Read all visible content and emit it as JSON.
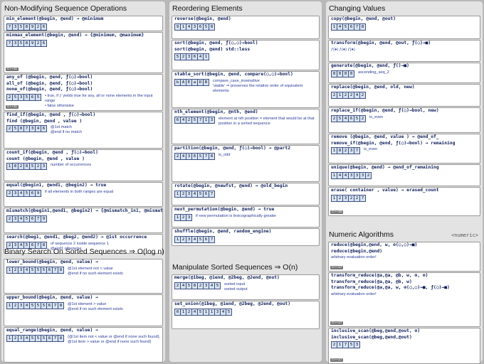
{
  "columns": [
    {
      "sections": [
        {
          "title": "Non-Modifying Sequence Operations",
          "cards": [
            {
              "lines": [
                "min_element(@begin, @end) → @minimum"
              ],
              "cells": [
                "7",
                "3",
                "5",
                "8",
                "9",
                "2",
                "6"
              ]
            },
            {
              "lines": [
                "minmax_element(@begin, @end) → {@minimum, @maximum}"
              ],
              "cells": [
                "7",
                "3",
                "5",
                "8",
                "9",
                "2",
                "6"
              ],
              "tag": "C++11"
            },
            {
              "lines": [
                "any_of (@begin, @end, ƒ(○)→bool)",
                "all_of (@begin, @end, ƒ(○)→bool)",
                "none_of(@begin, @end, ƒ(○)→bool)"
              ],
              "notes": [
                "• true, if ƒ yields true for any, all or none elements in the input range",
                "• false otherwise"
              ],
              "cells": [
                "2",
                "5",
                "3",
                "5",
                "6",
                "5"
              ],
              "tag": "C++11"
            },
            {
              "lines": [
                "find_if(@begin, @end , ƒ(○)→bool)",
                "find   (@begin, @end , value )"
              ],
              "notes": [
                "@1st match",
                "@end if no match"
              ],
              "cells": [
                "2",
                "5",
                "8",
                "7",
                "3",
                "4",
                "6"
              ]
            },
            {
              "lines": [
                "count_if(@begin, @end , ƒ(○)→bool)",
                "count   (@begin, @end , value )"
              ],
              "notes": [
                "number of occurrences"
              ],
              "cells": [
                "1",
                "8",
                "2",
                "8",
                "5",
                "2",
                "3"
              ]
            },
            {
              "lines": [
                "equal(@begin1, @end1, @begin2) → true"
              ],
              "notes": [
                "if all elements in both ranges are equal"
              ],
              "cells": [
                "2",
                "3",
                "4",
                "5",
                "6",
                "9"
              ]
            },
            {
              "lines": [
                "mismatch(@begin1,@end1, @begin2) → {@mismatch_in1, @mismatch_in2}"
              ],
              "cells": [
                "2",
                "3",
                "4",
                "5",
                "6",
                "7",
                "9"
              ]
            },
            {
              "lines": [
                "search(@beg1, @end1, @beg2, @end2) → @1st occurrence"
              ],
              "notes": [
                "of sequence 2 inside sequence 1",
                "@end1 otherwise"
              ],
              "cells": [
                "2",
                "3",
                "4",
                "5",
                "6",
                "7",
                "8"
              ]
            }
          ]
        },
        {
          "title": "Binary Search On Sorted Sequences ⇒ O(log n)",
          "cards": [
            {
              "lines": [
                "lower_bound(@begin, @end, value) →"
              ],
              "notes": [
                "@1st element not < value",
                "@end if no such element exists"
              ],
              "cells": [
                "1",
                "2",
                "3",
                "4",
                "5",
                "5",
                "5",
                "6",
                "7",
                "8"
              ]
            },
            {
              "lines": [
                "upper_bound(@begin, @end, value) →"
              ],
              "notes": [
                "@1st element > value",
                "@end if no such element exists"
              ],
              "cells": [
                "1",
                "2",
                "3",
                "4",
                "5",
                "5",
                "5",
                "6",
                "7",
                "8"
              ]
            },
            {
              "lines": [
                "equal_range(@begin, @end, value) →"
              ],
              "notes": [
                "{@1st item not < value or @end if none such found},",
                "@1st item > value or @end if none such found}"
              ],
              "cells": [
                "1",
                "2",
                "3",
                "4",
                "5",
                "5",
                "5",
                "6",
                "7",
                "8"
              ]
            }
          ]
        }
      ]
    },
    {
      "sections": [
        {
          "title": "Reordering Elements",
          "cards": [
            {
              "lines": [
                "reverse(@begin, @end)"
              ],
              "cells": [
                "9",
                "1",
                "4",
                "3",
                "6",
                "5",
                "8"
              ]
            },
            {
              "lines": [
                "sort(@begin, @end, ƒ(○,○)→bool)",
                "sort(@begin, @end)   std::less"
              ],
              "cells": [
                "5",
                "2",
                "3",
                "6",
                "4",
                "1"
              ]
            },
            {
              "lines": [
                "stable_sort(@begin, @end, compare(○,○)→bool)"
              ],
              "notes": [
                "compare_case_insensitive",
                "'stable' ⇒ preserves the relative order of equivalent elements"
              ],
              "cells": [
                "b",
                "A",
                "E",
                "a",
                "D",
                "B"
              ]
            },
            {
              "lines": [
                "nth_element(@begin, @nth, @end)"
              ],
              "notes": [
                "element at nth position = element that would be at that position in a sorted sequence"
              ],
              "cells": [
                "6",
                "4",
                "2",
                "5",
                "7",
                "1",
                "3"
              ]
            },
            {
              "lines": [
                "partition(@begin, @end, ƒ(○)→bool) → @part2"
              ],
              "notes": [
                "is_odd"
              ],
              "cells": [
                "2",
                "4",
                "3",
                "6",
                "5",
                "7",
                "8"
              ]
            },
            {
              "lines": [
                "rotate(@begin, @newfst, @end) → @old_begin"
              ],
              "cells": [
                "1",
                "2",
                "3",
                "4",
                "5",
                "6",
                "7"
              ]
            },
            {
              "lines": [
                "next_permutation(@begin, @end) → true"
              ],
              "notes": [
                "if new permutation is lexicographically greater"
              ],
              "cells": [
                "1",
                "2",
                "3"
              ]
            },
            {
              "lines": [
                "shuffle(@begin, @end, random_engine)"
              ],
              "cells": [
                "1",
                "2",
                "3",
                "4",
                "5",
                "6",
                "7"
              ]
            }
          ]
        },
        {
          "title": "Manipulate Sorted Sequences ⇒ O(n)",
          "cards": [
            {
              "lines": [
                "merge(@1beg, @1end, @2beg, @2end, @out)"
              ],
              "notes": [
                "sorted input",
                "sorted output"
              ],
              "cells": [
                "2",
                "4",
                "5",
                "8",
                "2",
                "3",
                "4",
                "5"
              ]
            },
            {
              "lines": [
                "set_union(@1beg, @1end, @2beg, @2end, @out)"
              ],
              "cells": [
                "0",
                "1",
                "2",
                "4",
                "5",
                "1",
                "1",
                "3",
                "4",
                "5"
              ]
            }
          ]
        }
      ]
    },
    {
      "sections": [
        {
          "title": "Changing Values",
          "cards": [
            {
              "lines": [
                "copy(@begin, @end, @out)"
              ],
              "cells": [
                "1",
                "4",
                "5",
                "6",
                "7",
                "8"
              ]
            },
            {
              "lines": [
                "transform(@begin, @end, @out, ƒ(○)→■)"
              ],
              "notes": [
                "ƒ(●) ƒ(●) ƒ(●)"
              ]
            },
            {
              "lines": [
                "generate(@begin, @end, ƒ()→■)"
              ],
              "notes": [
                "ascending_seq_2"
              ],
              "cells": [
                "0",
                "0",
                "0",
                "0"
              ]
            },
            {
              "lines": [
                "replace(@begin, @end, old, new)"
              ],
              "cells": [
                "2",
                "1",
                "2",
                "2",
                "4",
                "2"
              ]
            },
            {
              "lines": [
                "replace_if(@begin, @end, ƒ(○)→bool, new)"
              ],
              "notes": [
                "is_even"
              ],
              "cells": [
                "2",
                "5",
                "4",
                "6",
                "5",
                "2"
              ]
            },
            {
              "lines": [
                "remove   (@begin, @end, value  ) → @end_of_",
                "remove_if(@begin, @end, ƒ(○)→bool) → remaining"
              ],
              "notes": [
                "is_even"
              ],
              "cells": [
                "1",
                "8",
                "2",
                "3",
                "7"
              ]
            },
            {
              "lines": [
                "unique(@begin, @end) → @end_of_remaining"
              ],
              "cells": [
                "1",
                "4",
                "4",
                "3",
                "3",
                "3",
                "2"
              ]
            },
            {
              "lines": [
                "erase( container , value) → erased_count"
              ],
              "cells": [
                "1",
                "2",
                "3",
                "2",
                "2",
                "7"
              ],
              "tag": "C++20"
            }
          ]
        },
        {
          "title": "Numeric Algorithms",
          "tag": "<numeric>",
          "cards": [
            {
              "lines": [
                "reduce(@begin,@end, w, ⊕(○,○)→■)",
                "reduce(@begin,@end)"
              ],
              "notes": [
                "arbitrary evaluation order!"
              ],
              "tag": "C++17"
            },
            {
              "lines": [
                "transform_reduce(@a,@a, @b, w, ⊕, ⊗)",
                "transform_reduce(@a,@a, @b, w)",
                "transform_reduce(@a,@a, w, ⊕(○,○)→■, ƒ(○)→■)"
              ],
              "notes": [
                "arbitrary evaluation order!"
              ],
              "tag": "C++17"
            },
            {
              "lines": [
                "inclusive_scan(@beg,@end,@out, ⊕)",
                "inclusive_scan(@beg,@end,@out)"
              ],
              "cells": [
                "2",
                "1",
                "7",
                "5",
                "3"
              ],
              "tag": "C++17"
            }
          ]
        }
      ]
    }
  ]
}
